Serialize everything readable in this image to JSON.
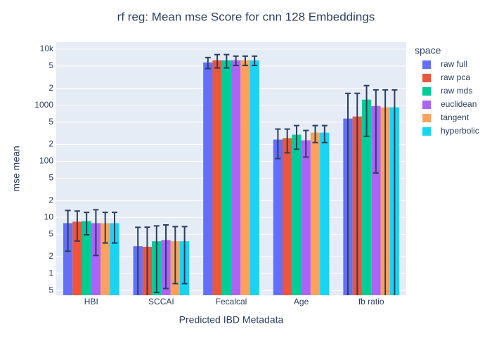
{
  "chart_data": {
    "type": "bar",
    "title": "rf reg: Mean mse Score for cnn 128 Embeddings",
    "x_label": "Predicted IBD Metadata",
    "y_label": "mse mean",
    "legend_title": "space",
    "legend_position": "right",
    "categories": [
      "HBI",
      "SCCAI",
      "Fecalcal",
      "Age",
      "fb ratio"
    ],
    "log_y": true,
    "grid": true,
    "error_color": "#2a3f5f",
    "series": [
      {
        "name": "raw full",
        "color": "#636efa",
        "values": [
          7.9,
          3.07,
          5790,
          244,
          578
        ],
        "errors": [
          5.4,
          3.6,
          1290,
          132,
          1050
        ]
      },
      {
        "name": "raw pca",
        "color": "#ef553b",
        "values": [
          8.4,
          3.0,
          6310,
          259,
          631
        ],
        "errors": [
          4.6,
          3.7,
          1690,
          117,
          1000
        ]
      },
      {
        "name": "raw mds",
        "color": "#00cc96",
        "values": [
          8.6,
          3.76,
          6310,
          299,
          1259
        ],
        "errors": [
          3.7,
          3.3,
          1690,
          135,
          980
        ]
      },
      {
        "name": "euclidean",
        "color": "#ab63fa",
        "values": [
          7.9,
          3.94,
          6310,
          237,
          972
        ],
        "errors": [
          5.8,
          3.4,
          1190,
          118,
          910
        ]
      },
      {
        "name": "tangent",
        "color": "#ffa15a",
        "values": [
          7.9,
          3.76,
          6310,
          325,
          917
        ],
        "errors": [
          4.4,
          3.1,
          1190,
          109,
          960
        ]
      },
      {
        "name": "hyperbolic",
        "color": "#19d3f3",
        "values": [
          7.9,
          3.76,
          6310,
          325,
          917
        ],
        "errors": [
          4.4,
          3.1,
          1190,
          109,
          960
        ]
      }
    ],
    "ylim": [
      0.41,
      13300
    ],
    "yticks": [
      {
        "value": 0.5,
        "label": "5"
      },
      1,
      {
        "value": 2,
        "label": "2"
      },
      {
        "value": 5,
        "label": "5"
      },
      10,
      {
        "value": 20,
        "label": "2"
      },
      {
        "value": 50,
        "label": "5"
      },
      100,
      {
        "value": 200,
        "label": "2"
      },
      {
        "value": 500,
        "label": "5"
      },
      1000,
      {
        "value": 2000,
        "label": "2"
      },
      {
        "value": 5000,
        "label": "5"
      },
      {
        "value": 10000,
        "label": "10k"
      }
    ]
  }
}
